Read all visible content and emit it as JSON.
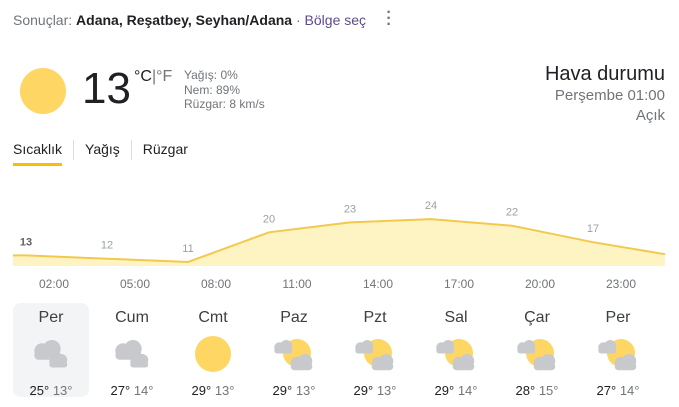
{
  "header": {
    "prefix": "Sonuçlar:",
    "location": "Adana, Reşatbey, Seyhan/Adana",
    "separator": "·",
    "region_link": "Bölge seç"
  },
  "current": {
    "icon": "sun-icon",
    "temp": "13",
    "unit_c": "°C",
    "unit_sep": "|",
    "unit_f": "°F",
    "precip": "Yağış: 0%",
    "humidity": "Nem: 89%",
    "wind": "Rüzgar: 8 km/s"
  },
  "summary": {
    "title": "Hava durumu",
    "time": "Perşembe 01:00",
    "condition": "Açık"
  },
  "tabs": [
    {
      "label": "Sıcaklık",
      "active": true
    },
    {
      "label": "Yağış"
    },
    {
      "label": "Rüzgar"
    }
  ],
  "colors": {
    "accent": "#fbbc04",
    "line": "#f2c94c",
    "fill": "#fef3c3",
    "sun": "#fdd663",
    "cloud": "#c7c9cc"
  },
  "chart_data": {
    "type": "area",
    "categories": [
      "02:00",
      "05:00",
      "08:00",
      "11:00",
      "14:00",
      "17:00",
      "20:00",
      "23:00"
    ],
    "values": [
      13,
      12,
      11,
      20,
      23,
      24,
      22,
      17
    ],
    "labels": [
      "13",
      "12",
      "11",
      "20",
      "23",
      "24",
      "22",
      "17"
    ]
  },
  "days": [
    {
      "name": "Per",
      "icon": "cloudy-icon",
      "high": "25°",
      "low": "13°",
      "selected": true
    },
    {
      "name": "Cum",
      "icon": "cloudy-icon",
      "high": "27°",
      "low": "14°"
    },
    {
      "name": "Cmt",
      "icon": "sun-icon",
      "high": "29°",
      "low": "13°"
    },
    {
      "name": "Paz",
      "icon": "partly-cloudy-icon",
      "high": "29°",
      "low": "13°"
    },
    {
      "name": "Pzt",
      "icon": "partly-cloudy-icon",
      "high": "29°",
      "low": "13°"
    },
    {
      "name": "Sal",
      "icon": "partly-cloudy-icon",
      "high": "29°",
      "low": "14°"
    },
    {
      "name": "Çar",
      "icon": "partly-cloudy-icon",
      "high": "28°",
      "low": "15°"
    },
    {
      "name": "Per",
      "icon": "partly-cloudy-icon",
      "high": "27°",
      "low": "14°"
    }
  ]
}
